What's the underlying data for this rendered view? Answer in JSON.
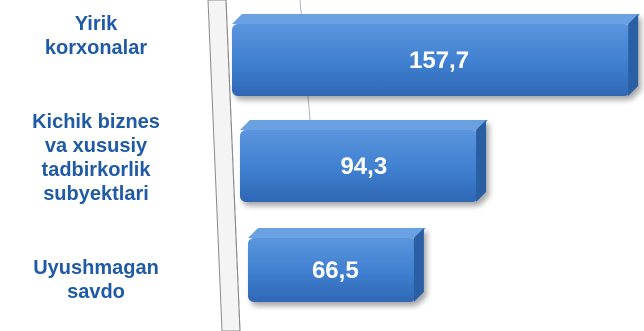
{
  "chart_data": {
    "type": "bar",
    "orientation": "horizontal",
    "categories": [
      [
        "Yirik",
        "korxonalar"
      ],
      [
        "Kichik biznes",
        "va xususiy",
        "tadbirkorlik",
        "subyektlari"
      ],
      [
        "Uyushmagan",
        "savdo"
      ]
    ],
    "values": [
      157.7,
      94.3,
      66.5
    ],
    "value_labels": [
      "157,7",
      "94,3",
      "66,5"
    ],
    "xlim": [
      0,
      160
    ],
    "grid": false,
    "legend": "none",
    "colors": {
      "bar": "#3f7fd0",
      "bar_top": "#6aa1e3",
      "bar_side": "#2a5ea3",
      "label_text": "#1f5aa6",
      "value_text": "#ffffff"
    }
  }
}
